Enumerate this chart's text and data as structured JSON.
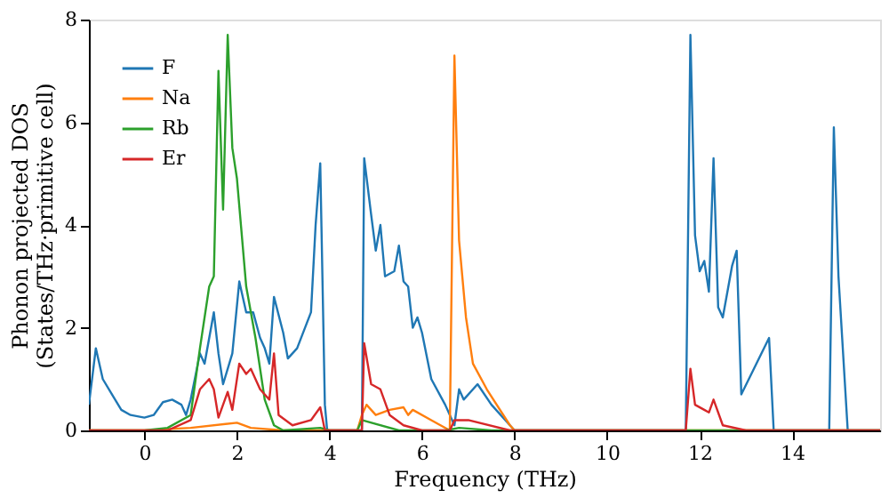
{
  "chart_data": {
    "type": "line",
    "xlabel": "Frequency (THz)",
    "ylabel": "Phonon projected DOS\n(States/THz·primitive cell)",
    "xlim": [
      -1.2,
      15.9
    ],
    "ylim": [
      0,
      8
    ],
    "xticks": [
      0,
      2,
      4,
      6,
      8,
      10,
      12,
      14
    ],
    "yticks": [
      0,
      2,
      4,
      6,
      8
    ],
    "grid": false,
    "legend": "top left",
    "line_style": "solid",
    "marker": "none",
    "series": [
      {
        "name": "F",
        "color": "#1f77b4",
        "x": [
          -1.2,
          -1.05,
          -0.9,
          -0.7,
          -0.5,
          -0.3,
          0,
          0.2,
          0.4,
          0.6,
          0.8,
          0.9,
          1.0,
          1.2,
          1.3,
          1.5,
          1.6,
          1.7,
          1.9,
          2.05,
          2.2,
          2.35,
          2.5,
          2.6,
          2.7,
          2.8,
          3.0,
          3.1,
          3.3,
          3.6,
          3.7,
          3.8,
          3.9,
          3.95,
          4.7,
          4.75,
          4.9,
          5.0,
          5.1,
          5.2,
          5.4,
          5.5,
          5.6,
          5.7,
          5.8,
          5.9,
          6.0,
          6.2,
          6.5,
          6.7,
          6.8,
          6.9,
          7.2,
          7.5,
          7.9,
          8.0,
          11.7,
          11.8,
          11.9,
          12.0,
          12.1,
          12.2,
          12.3,
          12.4,
          12.5,
          12.7,
          12.8,
          12.9,
          13.5,
          13.6,
          14.8,
          14.9,
          15.0,
          15.2,
          15.9
        ],
        "values": [
          0.5,
          1.6,
          1.0,
          0.7,
          0.4,
          0.3,
          0.25,
          0.3,
          0.55,
          0.6,
          0.5,
          0.3,
          0.6,
          1.5,
          1.3,
          2.3,
          1.5,
          0.9,
          1.5,
          2.9,
          2.3,
          2.3,
          1.8,
          1.6,
          1.3,
          2.6,
          1.9,
          1.4,
          1.6,
          2.3,
          4.0,
          5.2,
          0.5,
          0,
          0,
          5.3,
          4.2,
          3.5,
          4.0,
          3.0,
          3.1,
          3.6,
          2.9,
          2.8,
          2.0,
          2.2,
          1.9,
          1.0,
          0.5,
          0.1,
          0.8,
          0.6,
          0.9,
          0.5,
          0.1,
          0,
          0,
          7.7,
          3.8,
          3.1,
          3.3,
          2.7,
          5.3,
          2.4,
          2.2,
          3.2,
          3.5,
          0.7,
          1.8,
          0,
          0,
          5.9,
          3.0,
          0,
          0
        ]
      },
      {
        "name": "Na",
        "color": "#ff7f0e",
        "x": [
          -1.2,
          0,
          1.0,
          2.0,
          2.3,
          3.0,
          4.6,
          4.7,
          4.8,
          5.0,
          5.3,
          5.6,
          5.7,
          5.8,
          6.2,
          6.6,
          6.7,
          6.8,
          6.95,
          7.1,
          7.4,
          7.9,
          8.0,
          15.9
        ],
        "values": [
          0,
          0,
          0.05,
          0.15,
          0.05,
          0,
          0,
          0.3,
          0.5,
          0.3,
          0.4,
          0.45,
          0.3,
          0.4,
          0.2,
          0,
          7.3,
          3.7,
          2.2,
          1.3,
          0.8,
          0.1,
          0,
          0
        ]
      },
      {
        "name": "Rb",
        "color": "#2ca02c",
        "x": [
          -1.2,
          0,
          0.5,
          1.0,
          1.2,
          1.4,
          1.5,
          1.6,
          1.7,
          1.8,
          1.9,
          2.0,
          2.2,
          2.4,
          2.6,
          2.8,
          3.0,
          3.8,
          4.0,
          4.6,
          4.7,
          5.5,
          6.5,
          6.8,
          7.5,
          15.9
        ],
        "values": [
          0,
          0,
          0.05,
          0.3,
          1.6,
          2.8,
          3.0,
          7.0,
          4.3,
          7.7,
          5.5,
          4.9,
          2.8,
          1.8,
          0.6,
          0.1,
          0,
          0.05,
          0,
          0,
          0.2,
          0,
          0,
          0.05,
          0,
          0
        ]
      },
      {
        "name": "Er",
        "color": "#d62728",
        "x": [
          -1.2,
          0.5,
          1.0,
          1.2,
          1.4,
          1.5,
          1.6,
          1.8,
          1.9,
          2.05,
          2.2,
          2.3,
          2.5,
          2.7,
          2.8,
          2.9,
          3.2,
          3.6,
          3.8,
          3.9,
          4.7,
          4.75,
          4.9,
          5.1,
          5.3,
          5.6,
          6.0,
          6.6,
          6.7,
          7.0,
          7.9,
          11.7,
          11.8,
          11.9,
          12.1,
          12.2,
          12.3,
          12.5,
          13.0,
          15.9
        ],
        "values": [
          0,
          0,
          0.2,
          0.8,
          1.0,
          0.8,
          0.25,
          0.75,
          0.4,
          1.3,
          1.1,
          1.2,
          0.8,
          0.6,
          1.5,
          0.3,
          0.1,
          0.2,
          0.45,
          0,
          0,
          1.7,
          0.9,
          0.8,
          0.3,
          0.1,
          0,
          0,
          0.2,
          0.2,
          0,
          0,
          1.2,
          0.5,
          0.4,
          0.35,
          0.6,
          0.1,
          0,
          0
        ]
      }
    ]
  }
}
